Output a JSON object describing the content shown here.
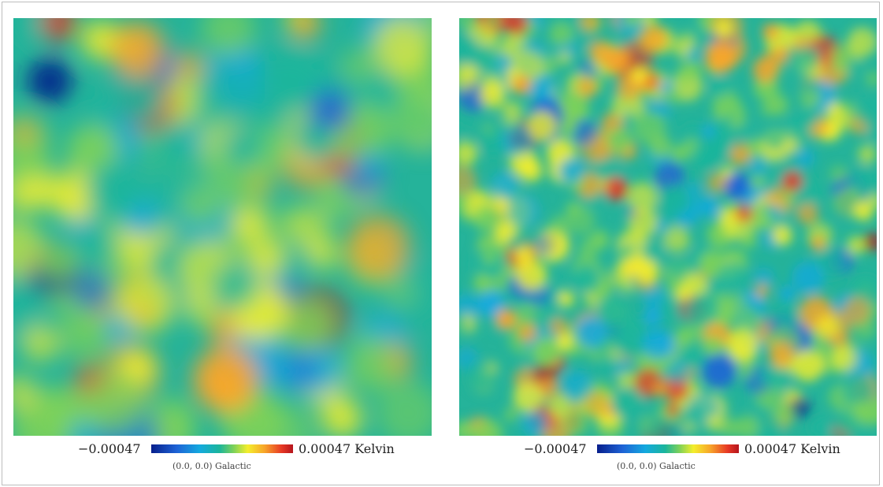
{
  "panels": [
    {
      "id": "low-resolution",
      "legend": {
        "min_label": "−0.00047",
        "max_label": "0.00047 Kelvin"
      },
      "coordinate_label": "(0.0, 0.0) Galactic"
    },
    {
      "id": "high-resolution",
      "legend": {
        "min_label": "−0.00047",
        "max_label": "0.00047 Kelvin"
      },
      "coordinate_label": "(0.0, 0.0) Galactic"
    }
  ],
  "colormap": [
    "#071f8c",
    "#1e63d6",
    "#14a9df",
    "#1bb59c",
    "#7cd15a",
    "#f4ee2c",
    "#f7a42a",
    "#e73925",
    "#b5151d"
  ]
}
